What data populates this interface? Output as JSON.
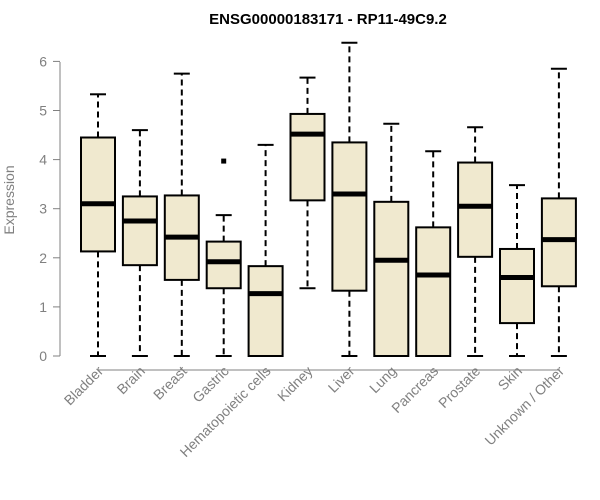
{
  "chart_data": {
    "type": "boxplot",
    "title": "ENSG00000183171 - RP11-49C9.2",
    "xlabel": "",
    "ylabel": "Expression",
    "ylim": [
      0,
      6.3
    ],
    "yticks": [
      0,
      1,
      2,
      3,
      4,
      5,
      6
    ],
    "box_color": "#f0e9cf",
    "categories": [
      "Bladder",
      "Brain",
      "Breast",
      "Gastric",
      "Hematopoietic cells",
      "Kidney",
      "Liver",
      "Lung",
      "Pancreas",
      "Prostate",
      "Skin",
      "Unknown / Other"
    ],
    "boxes": [
      {
        "category": "Bladder",
        "whisker_low": 0,
        "q1": 2.13,
        "median": 3.1,
        "q3": 4.45,
        "whisker_high": 5.33,
        "outliers": []
      },
      {
        "category": "Brain",
        "whisker_low": 0,
        "q1": 1.85,
        "median": 2.75,
        "q3": 3.25,
        "whisker_high": 4.6,
        "outliers": []
      },
      {
        "category": "Breast",
        "whisker_low": 0,
        "q1": 1.55,
        "median": 2.42,
        "q3": 3.27,
        "whisker_high": 5.75,
        "outliers": []
      },
      {
        "category": "Gastric",
        "whisker_low": 0,
        "q1": 1.38,
        "median": 1.92,
        "q3": 2.33,
        "whisker_high": 2.87,
        "outliers": [
          3.97
        ]
      },
      {
        "category": "Hematopoietic cells",
        "whisker_low": 0,
        "q1": 0,
        "median": 1.27,
        "q3": 1.83,
        "whisker_high": 4.3,
        "outliers": []
      },
      {
        "category": "Kidney",
        "whisker_low": 1.38,
        "q1": 3.17,
        "median": 4.52,
        "q3": 4.93,
        "whisker_high": 5.67,
        "outliers": []
      },
      {
        "category": "Liver",
        "whisker_low": 0,
        "q1": 1.33,
        "median": 3.3,
        "q3": 4.35,
        "whisker_high": 6.38,
        "outliers": []
      },
      {
        "category": "Lung",
        "whisker_low": 0,
        "q1": 0,
        "median": 1.95,
        "q3": 3.14,
        "whisker_high": 4.73,
        "outliers": []
      },
      {
        "category": "Pancreas",
        "whisker_low": 0,
        "q1": 0,
        "median": 1.65,
        "q3": 2.62,
        "whisker_high": 4.17,
        "outliers": []
      },
      {
        "category": "Prostate",
        "whisker_low": 0,
        "q1": 2.02,
        "median": 3.05,
        "q3": 3.94,
        "whisker_high": 4.66,
        "outliers": []
      },
      {
        "category": "Skin",
        "whisker_low": 0,
        "q1": 0.67,
        "median": 1.6,
        "q3": 2.18,
        "whisker_high": 3.48,
        "outliers": []
      },
      {
        "category": "Unknown / Other",
        "whisker_low": 0,
        "q1": 1.42,
        "median": 2.37,
        "q3": 3.21,
        "whisker_high": 5.85,
        "outliers": []
      }
    ]
  }
}
